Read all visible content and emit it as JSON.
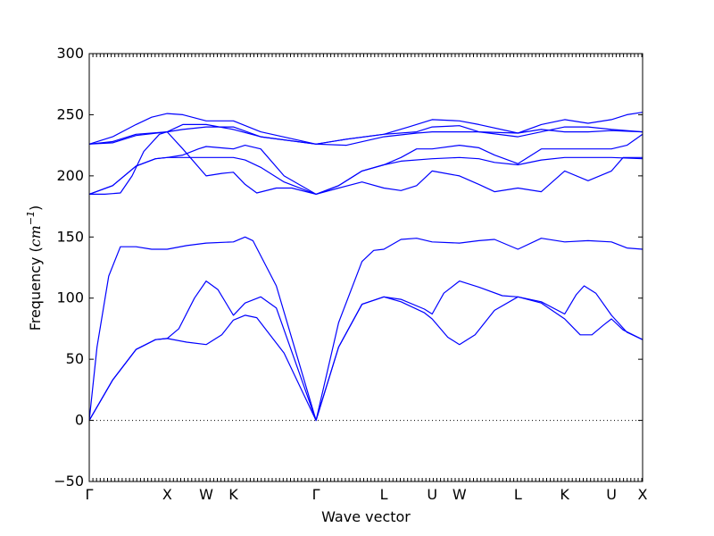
{
  "chart_data": {
    "type": "line",
    "xlabel": "Wave vector",
    "ylabel_prefix": "Frequency (",
    "ylabel_unit_base": "cm",
    "ylabel_unit_exp": "−1",
    "ylabel_suffix": ")",
    "ylim": [
      -50,
      300
    ],
    "yticks": [
      -50,
      0,
      50,
      100,
      150,
      200,
      250,
      300
    ],
    "xlim": [
      0,
      7.1
    ],
    "zero_line": true,
    "k_points": [
      {
        "label": "Γ",
        "x": 0.0
      },
      {
        "label": "X",
        "x": 1.0
      },
      {
        "label": "W",
        "x": 1.5
      },
      {
        "label": "K",
        "x": 1.85
      },
      {
        "label": "Γ",
        "x": 2.91
      },
      {
        "label": "L",
        "x": 3.78
      },
      {
        "label": "U",
        "x": 4.4
      },
      {
        "label": "W",
        "x": 4.75
      },
      {
        "label": "L",
        "x": 5.5
      },
      {
        "label": "K",
        "x": 6.1
      },
      {
        "label": "U",
        "x": 6.7
      },
      {
        "label": "X",
        "x": 7.1
      }
    ],
    "series": [
      {
        "points": [
          [
            0,
            0
          ],
          [
            0.3,
            33
          ],
          [
            0.6,
            58
          ],
          [
            0.85,
            66
          ],
          [
            1.0,
            67
          ],
          [
            1.25,
            64
          ],
          [
            1.5,
            62
          ],
          [
            1.7,
            70
          ],
          [
            1.85,
            82
          ],
          [
            2.0,
            86
          ],
          [
            2.15,
            84
          ],
          [
            2.5,
            55
          ],
          [
            2.91,
            0
          ],
          [
            3.2,
            60
          ],
          [
            3.5,
            95
          ],
          [
            3.78,
            101
          ],
          [
            4.0,
            97
          ],
          [
            4.3,
            88
          ],
          [
            4.4,
            83
          ],
          [
            4.6,
            68
          ],
          [
            4.75,
            62
          ],
          [
            4.95,
            70
          ],
          [
            5.2,
            90
          ],
          [
            5.5,
            101
          ],
          [
            5.8,
            96
          ],
          [
            6.1,
            83
          ],
          [
            6.3,
            70
          ],
          [
            6.45,
            70
          ],
          [
            6.6,
            78
          ],
          [
            6.7,
            83
          ],
          [
            6.85,
            74
          ],
          [
            7.1,
            66
          ]
        ]
      },
      {
        "points": [
          [
            0,
            0
          ],
          [
            0.3,
            33
          ],
          [
            0.6,
            58
          ],
          [
            0.85,
            66
          ],
          [
            1.0,
            67
          ],
          [
            1.15,
            75
          ],
          [
            1.35,
            100
          ],
          [
            1.5,
            114
          ],
          [
            1.65,
            107
          ],
          [
            1.85,
            86
          ],
          [
            2.0,
            96
          ],
          [
            2.2,
            101
          ],
          [
            2.4,
            92
          ],
          [
            2.91,
            0
          ],
          [
            3.2,
            60
          ],
          [
            3.5,
            95
          ],
          [
            3.78,
            101
          ],
          [
            4.0,
            99
          ],
          [
            4.3,
            91
          ],
          [
            4.4,
            87
          ],
          [
            4.55,
            104
          ],
          [
            4.75,
            114
          ],
          [
            5.0,
            109
          ],
          [
            5.3,
            102
          ],
          [
            5.5,
            101
          ],
          [
            5.8,
            97
          ],
          [
            6.1,
            87
          ],
          [
            6.25,
            103
          ],
          [
            6.35,
            110
          ],
          [
            6.5,
            104
          ],
          [
            6.7,
            86
          ],
          [
            6.9,
            72
          ],
          [
            7.1,
            66
          ]
        ]
      },
      {
        "points": [
          [
            0,
            0
          ],
          [
            0.1,
            60
          ],
          [
            0.25,
            118
          ],
          [
            0.4,
            142
          ],
          [
            0.6,
            142
          ],
          [
            0.8,
            140
          ],
          [
            1.0,
            140
          ],
          [
            1.25,
            143
          ],
          [
            1.5,
            145
          ],
          [
            1.85,
            146
          ],
          [
            2.0,
            150
          ],
          [
            2.1,
            147
          ],
          [
            2.4,
            110
          ],
          [
            2.91,
            0
          ],
          [
            3.2,
            80
          ],
          [
            3.5,
            130
          ],
          [
            3.65,
            139
          ],
          [
            3.78,
            140
          ],
          [
            4.0,
            148
          ],
          [
            4.2,
            149
          ],
          [
            4.4,
            146
          ],
          [
            4.75,
            145
          ],
          [
            5.0,
            147
          ],
          [
            5.2,
            148
          ],
          [
            5.5,
            140
          ],
          [
            5.8,
            149
          ],
          [
            6.1,
            146
          ],
          [
            6.4,
            147
          ],
          [
            6.7,
            146
          ],
          [
            6.9,
            141
          ],
          [
            7.1,
            140
          ]
        ]
      },
      {
        "points": [
          [
            0,
            185
          ],
          [
            0.2,
            185
          ],
          [
            0.4,
            186
          ],
          [
            0.55,
            200
          ],
          [
            0.7,
            220
          ],
          [
            0.9,
            234
          ],
          [
            1.0,
            236
          ],
          [
            1.2,
            222
          ],
          [
            1.5,
            200
          ],
          [
            1.7,
            202
          ],
          [
            1.85,
            203
          ],
          [
            2.0,
            193
          ],
          [
            2.15,
            186
          ],
          [
            2.4,
            190
          ],
          [
            2.6,
            190
          ],
          [
            2.91,
            185
          ],
          [
            3.2,
            190
          ],
          [
            3.5,
            195
          ],
          [
            3.78,
            190
          ],
          [
            4.0,
            188
          ],
          [
            4.2,
            192
          ],
          [
            4.4,
            204
          ],
          [
            4.75,
            200
          ],
          [
            5.0,
            193
          ],
          [
            5.2,
            187
          ],
          [
            5.5,
            190
          ],
          [
            5.8,
            187
          ],
          [
            6.1,
            204
          ],
          [
            6.4,
            196
          ],
          [
            6.7,
            204
          ],
          [
            6.85,
            215
          ],
          [
            7.1,
            215
          ]
        ]
      },
      {
        "points": [
          [
            0,
            185
          ],
          [
            0.3,
            192
          ],
          [
            0.6,
            208
          ],
          [
            0.85,
            214
          ],
          [
            1.0,
            215
          ],
          [
            1.2,
            215
          ],
          [
            1.5,
            215
          ],
          [
            1.85,
            215
          ],
          [
            2.0,
            213
          ],
          [
            2.2,
            207
          ],
          [
            2.5,
            195
          ],
          [
            2.91,
            185
          ],
          [
            3.2,
            192
          ],
          [
            3.5,
            204
          ],
          [
            3.78,
            209
          ],
          [
            4.0,
            212
          ],
          [
            4.4,
            214
          ],
          [
            4.75,
            215
          ],
          [
            5.0,
            214
          ],
          [
            5.2,
            211
          ],
          [
            5.5,
            209
          ],
          [
            5.8,
            213
          ],
          [
            6.1,
            215
          ],
          [
            6.4,
            215
          ],
          [
            6.7,
            215
          ],
          [
            7.1,
            214
          ]
        ]
      },
      {
        "points": [
          [
            0,
            185
          ],
          [
            0.3,
            192
          ],
          [
            0.6,
            208
          ],
          [
            0.85,
            214
          ],
          [
            1.0,
            215
          ],
          [
            1.2,
            217
          ],
          [
            1.4,
            222
          ],
          [
            1.5,
            224
          ],
          [
            1.85,
            222
          ],
          [
            2.0,
            225
          ],
          [
            2.2,
            222
          ],
          [
            2.5,
            200
          ],
          [
            2.91,
            185
          ],
          [
            3.2,
            192
          ],
          [
            3.5,
            204
          ],
          [
            3.78,
            209
          ],
          [
            4.0,
            215
          ],
          [
            4.2,
            222
          ],
          [
            4.4,
            222
          ],
          [
            4.75,
            225
          ],
          [
            5.0,
            223
          ],
          [
            5.2,
            217
          ],
          [
            5.5,
            210
          ],
          [
            5.8,
            222
          ],
          [
            6.1,
            222
          ],
          [
            6.4,
            222
          ],
          [
            6.7,
            222
          ],
          [
            6.9,
            225
          ],
          [
            7.1,
            234
          ]
        ]
      },
      {
        "points": [
          [
            0,
            226
          ],
          [
            0.3,
            227
          ],
          [
            0.6,
            233
          ],
          [
            1.0,
            236
          ],
          [
            1.2,
            238
          ],
          [
            1.5,
            240
          ],
          [
            1.85,
            240
          ],
          [
            2.2,
            232
          ],
          [
            2.91,
            226
          ],
          [
            3.3,
            230
          ],
          [
            3.78,
            234
          ],
          [
            4.2,
            236
          ],
          [
            4.4,
            240
          ],
          [
            4.75,
            241
          ],
          [
            5.0,
            236
          ],
          [
            5.5,
            235
          ],
          [
            5.8,
            238
          ],
          [
            6.1,
            236
          ],
          [
            6.4,
            236
          ],
          [
            6.7,
            237
          ],
          [
            7.1,
            236
          ]
        ]
      },
      {
        "points": [
          [
            0,
            226
          ],
          [
            0.3,
            228
          ],
          [
            0.6,
            234
          ],
          [
            1.0,
            236
          ],
          [
            1.2,
            242
          ],
          [
            1.5,
            242
          ],
          [
            1.85,
            238
          ],
          [
            2.2,
            232
          ],
          [
            2.91,
            226
          ],
          [
            3.3,
            225
          ],
          [
            3.78,
            232
          ],
          [
            4.2,
            235
          ],
          [
            4.4,
            236
          ],
          [
            4.75,
            236
          ],
          [
            5.0,
            236
          ],
          [
            5.5,
            232
          ],
          [
            5.8,
            236
          ],
          [
            6.1,
            240
          ],
          [
            6.4,
            240
          ],
          [
            6.7,
            238
          ],
          [
            7.1,
            236
          ]
        ]
      },
      {
        "points": [
          [
            0,
            226
          ],
          [
            0.3,
            232
          ],
          [
            0.6,
            242
          ],
          [
            0.8,
            248
          ],
          [
            1.0,
            251
          ],
          [
            1.2,
            250
          ],
          [
            1.5,
            245
          ],
          [
            1.85,
            245
          ],
          [
            2.2,
            236
          ],
          [
            2.91,
            226
          ],
          [
            3.3,
            230
          ],
          [
            3.78,
            234
          ],
          [
            4.1,
            240
          ],
          [
            4.4,
            246
          ],
          [
            4.75,
            245
          ],
          [
            5.0,
            242
          ],
          [
            5.5,
            235
          ],
          [
            5.8,
            242
          ],
          [
            6.1,
            246
          ],
          [
            6.4,
            243
          ],
          [
            6.7,
            246
          ],
          [
            6.9,
            250
          ],
          [
            7.1,
            252
          ]
        ]
      }
    ]
  }
}
